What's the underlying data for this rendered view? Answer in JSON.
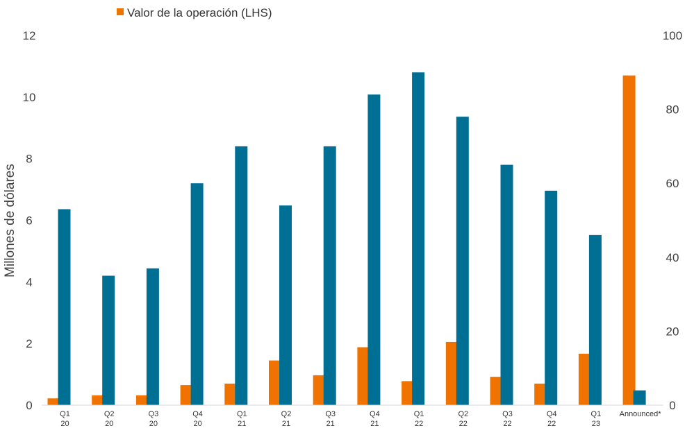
{
  "chart_data": {
    "type": "bar",
    "categories": [
      [
        "Q1",
        "20"
      ],
      [
        "Q2",
        "20"
      ],
      [
        "Q3",
        "20"
      ],
      [
        "Q4",
        "20"
      ],
      [
        "Q1",
        "21"
      ],
      [
        "Q2",
        "21"
      ],
      [
        "Q3",
        "21"
      ],
      [
        "Q4",
        "21"
      ],
      [
        "Q1",
        "22"
      ],
      [
        "Q2",
        "22"
      ],
      [
        "Q3",
        "22"
      ],
      [
        "Q4",
        "22"
      ],
      [
        "Q1",
        "23"
      ],
      [
        "Announced*"
      ]
    ],
    "series": [
      {
        "name": "Valor de la operación (LHS)",
        "axis": "left",
        "color": "#F07300",
        "values": [
          0.22,
          0.32,
          0.32,
          0.65,
          0.7,
          1.45,
          0.97,
          1.88,
          0.78,
          2.05,
          0.92,
          0.7,
          1.67,
          10.7
        ]
      },
      {
        "name": "",
        "axis": "right",
        "color": "#006F94",
        "values": [
          53,
          35,
          37,
          60,
          70,
          54,
          70,
          84,
          90,
          78,
          65,
          58,
          46,
          4
        ]
      }
    ],
    "ylabel": "Millones de dólares",
    "ylim": [
      0,
      12
    ],
    "yticks": [
      0,
      2,
      4,
      6,
      8,
      10,
      12
    ],
    "y2lim": [
      0,
      100
    ],
    "y2ticks": [
      0,
      20,
      40,
      60,
      80,
      100
    ],
    "legend": {
      "position": "top-center",
      "entries": [
        "Valor de la operación (LHS)"
      ]
    },
    "grid": false
  }
}
